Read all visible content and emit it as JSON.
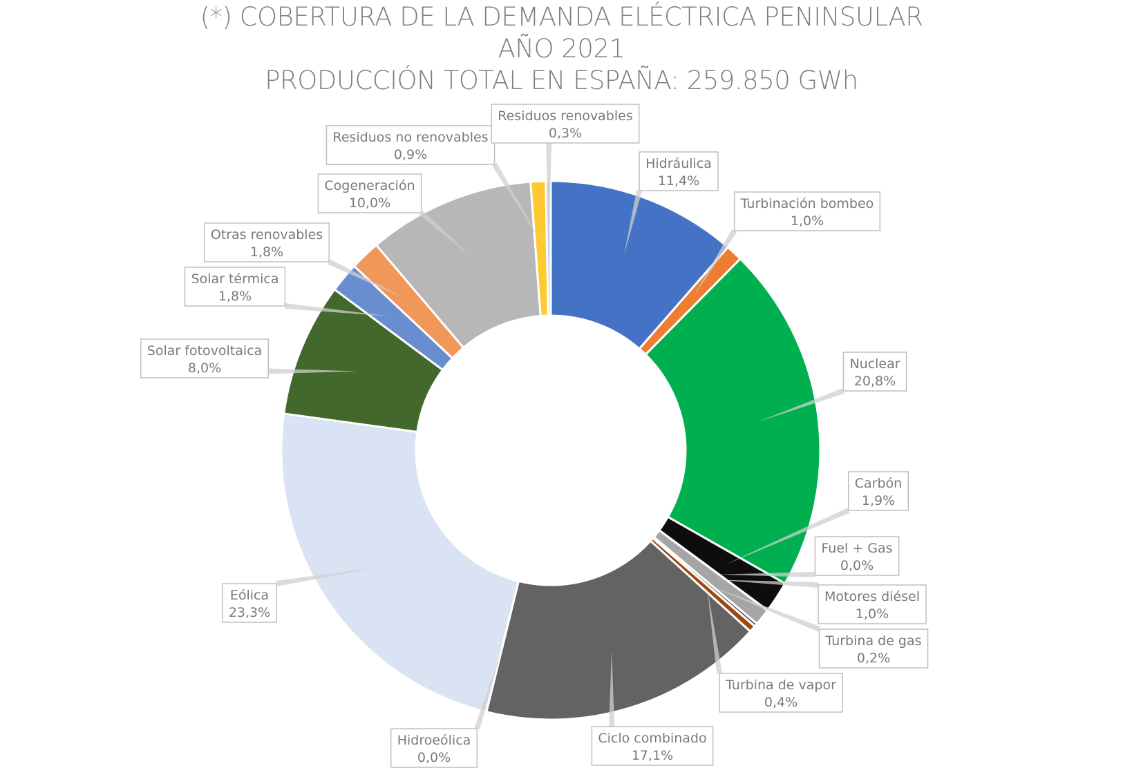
{
  "title": {
    "line1": "(*) COBERTURA DE LA DEMANDA ELÉCTRICA PENINSULAR",
    "line2": "AÑO 2021",
    "line3": "PRODUCCIÓN TOTAL EN ESPAÑA: 259.850 GWh"
  },
  "chart_data": {
    "type": "pie",
    "variant": "doughnut",
    "title": "(*) COBERTURA DE LA DEMANDA ELÉCTRICA PENINSULAR AÑO 2021 PRODUCCIÓN TOTAL EN ESPAÑA: 259.850 GWh",
    "unit": "%",
    "slices": [
      {
        "label": "Hidráulica",
        "value": 11.4,
        "display": "11,4%",
        "color": "#4472C4"
      },
      {
        "label": "Turbinación bombeo",
        "value": 1.0,
        "display": "1,0%",
        "color": "#ED7D31"
      },
      {
        "label": "Nuclear",
        "value": 20.8,
        "display": "20,8%",
        "color": "#00B050"
      },
      {
        "label": "Carbón",
        "value": 1.9,
        "display": "1,9%",
        "color": "#0D0D0D"
      },
      {
        "label": "Fuel + Gas",
        "value": 0.0,
        "display": "0,0%",
        "color": "#404040"
      },
      {
        "label": "Motores diésel",
        "value": 1.0,
        "display": "1,0%",
        "color": "#A5A5A5"
      },
      {
        "label": "Turbina de gas",
        "value": 0.2,
        "display": "0,2%",
        "color": "#5A5A5A"
      },
      {
        "label": "Turbina de vapor",
        "value": 0.4,
        "display": "0,4%",
        "color": "#9E480E"
      },
      {
        "label": "Ciclo combinado",
        "value": 17.1,
        "display": "17,1%",
        "color": "#636363"
      },
      {
        "label": "Hidroeólica",
        "value": 0.0,
        "display": "0,0%",
        "color": "#D9E1F2"
      },
      {
        "label": "Eólica",
        "value": 23.3,
        "display": "23,3%",
        "color": "#DAE3F3"
      },
      {
        "label": "Solar fotovoltaica",
        "value": 8.0,
        "display": "8,0%",
        "color": "#43682B"
      },
      {
        "label": "Solar térmica",
        "value": 1.8,
        "display": "1,8%",
        "color": "#698ED0"
      },
      {
        "label": "Otras renovables",
        "value": 1.8,
        "display": "1,8%",
        "color": "#F1975A"
      },
      {
        "label": "Cogeneración",
        "value": 10.0,
        "display": "10,0%",
        "color": "#B7B7B7"
      },
      {
        "label": "Residuos no renovables",
        "value": 0.9,
        "display": "0,9%",
        "color": "#FFC930"
      },
      {
        "label": "Residuos renovables",
        "value": 0.3,
        "display": "0,3%",
        "color": "#BDD7EE"
      }
    ],
    "legend": "none",
    "labels": "callouts with leader lines"
  }
}
